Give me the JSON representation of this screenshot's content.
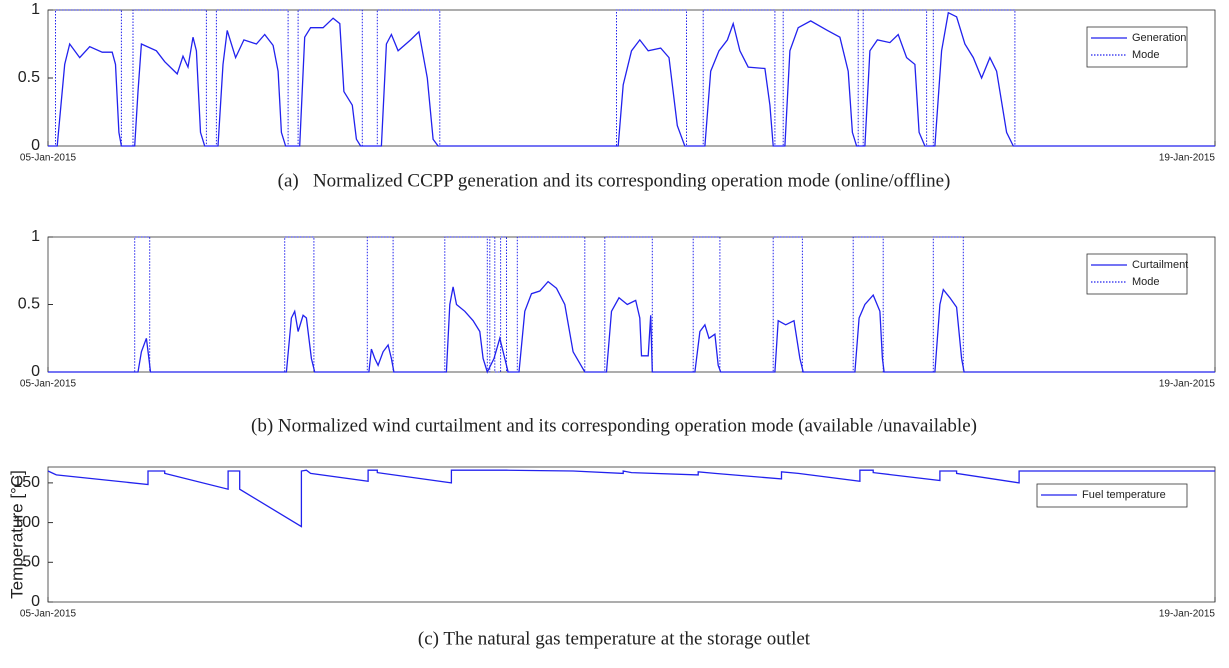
{
  "chart_data": [
    {
      "type": "line",
      "caption": "(a)   Normalized CCPP generation and its corresponding operation mode (online/offline)",
      "xlim": [
        0,
        14
      ],
      "xticks": [
        {
          "value": 0,
          "label": "05-Jan-2015"
        },
        {
          "value": 14,
          "label": "19-Jan-2015"
        }
      ],
      "ylim": [
        0,
        1
      ],
      "yticks": [
        0,
        0.5,
        1
      ],
      "legend": "upper right",
      "series": [
        {
          "name": "Generation",
          "color": "#2222ee",
          "style": "solid",
          "x": [
            0,
            0.11,
            0.2,
            0.26,
            0.38,
            0.5,
            0.65,
            0.77,
            0.81,
            0.85,
            0.88,
            1.04,
            1.08,
            1.12,
            1.3,
            1.4,
            1.55,
            1.62,
            1.68,
            1.74,
            1.78,
            1.83,
            1.88,
            2.04,
            2.1,
            2.15,
            2.25,
            2.35,
            2.5,
            2.6,
            2.7,
            2.76,
            2.8,
            2.85,
            3.02,
            3.08,
            3.15,
            3.3,
            3.42,
            3.5,
            3.55,
            3.65,
            3.7,
            3.75,
            4.0,
            4.06,
            4.12,
            4.2,
            4.35,
            4.45,
            4.55,
            4.62,
            4.68,
            6.84,
            6.9,
            7.0,
            7.1,
            7.2,
            7.35,
            7.45,
            7.55,
            7.64,
            7.88,
            7.95,
            8.05,
            8.15,
            8.22,
            8.3,
            8.4,
            8.6,
            8.66,
            8.7,
            8.84,
            8.9,
            9.0,
            9.15,
            9.35,
            9.5,
            9.6,
            9.65,
            9.7,
            9.8,
            9.86,
            9.95,
            10.1,
            10.2,
            10.3,
            10.4,
            10.45,
            10.52,
            10.64,
            10.72,
            10.8,
            10.9,
            11.0,
            11.1,
            11.2,
            11.3,
            11.38,
            11.5,
            11.58,
            14
          ],
          "values": [
            0,
            0,
            0.6,
            0.75,
            0.65,
            0.73,
            0.69,
            0.69,
            0.6,
            0.1,
            0,
            0,
            0.4,
            0.75,
            0.7,
            0.62,
            0.53,
            0.66,
            0.58,
            0.8,
            0.7,
            0.1,
            0,
            0,
            0.6,
            0.85,
            0.65,
            0.78,
            0.75,
            0.82,
            0.74,
            0.55,
            0.1,
            0,
            0,
            0.8,
            0.87,
            0.87,
            0.94,
            0.9,
            0.4,
            0.3,
            0.05,
            0,
            0,
            0.75,
            0.82,
            0.7,
            0.78,
            0.84,
            0.5,
            0.05,
            0,
            0,
            0.45,
            0.7,
            0.78,
            0.7,
            0.72,
            0.65,
            0.15,
            0,
            0,
            0.55,
            0.7,
            0.78,
            0.9,
            0.7,
            0.58,
            0.57,
            0.3,
            0,
            0,
            0.7,
            0.87,
            0.92,
            0.85,
            0.8,
            0.55,
            0.1,
            0,
            0,
            0.7,
            0.78,
            0.76,
            0.82,
            0.65,
            0.6,
            0.1,
            0,
            0,
            0.7,
            0.98,
            0.95,
            0.75,
            0.65,
            0.5,
            0.65,
            0.55,
            0.1,
            0,
            0
          ]
        },
        {
          "name": "Mode",
          "color": "#2222ee",
          "style": "dotted",
          "x": [
            0,
            0.09,
            0.09,
            0.88,
            0.88,
            1.02,
            1.02,
            1.9,
            1.9,
            2.02,
            2.02,
            2.88,
            2.88,
            3.0,
            3.0,
            3.77,
            3.77,
            3.95,
            3.95,
            4.7,
            4.7,
            6.82,
            6.82,
            7.66,
            7.66,
            7.86,
            7.86,
            8.72,
            8.72,
            8.82,
            8.82,
            9.72,
            9.72,
            9.78,
            9.78,
            10.54,
            10.54,
            10.62,
            10.62,
            11.6,
            11.6,
            14
          ],
          "values": [
            0,
            0,
            1,
            1,
            0,
            0,
            1,
            1,
            0,
            0,
            1,
            1,
            0,
            0,
            1,
            1,
            0,
            0,
            1,
            1,
            0,
            0,
            1,
            1,
            0,
            0,
            1,
            1,
            0,
            0,
            1,
            1,
            0,
            0,
            1,
            1,
            0,
            0,
            1,
            1,
            0,
            0
          ]
        }
      ]
    },
    {
      "type": "line",
      "caption": "(b) Normalized wind curtailment and its corresponding operation mode (available /unavailable)",
      "xlim": [
        0,
        14
      ],
      "xticks": [
        {
          "value": 0,
          "label": "05-Jan-2015"
        },
        {
          "value": 14,
          "label": "19-Jan-2015"
        }
      ],
      "ylim": [
        0,
        1
      ],
      "yticks": [
        0,
        0.5,
        1
      ],
      "legend": "upper right",
      "series": [
        {
          "name": "Curtailment",
          "color": "#2222ee",
          "style": "solid",
          "x": [
            0,
            1.08,
            1.12,
            1.18,
            1.21,
            1.23,
            2.86,
            2.92,
            2.96,
            3.0,
            3.06,
            3.1,
            3.16,
            3.2,
            3.85,
            3.88,
            3.92,
            3.96,
            4.02,
            4.08,
            4.12,
            4.15,
            4.78,
            4.82,
            4.86,
            4.9,
            5.0,
            5.1,
            5.18,
            5.22,
            5.27,
            5.35,
            5.42,
            5.48,
            5.52,
            5.65,
            5.72,
            5.8,
            5.9,
            6.0,
            6.1,
            6.2,
            6.3,
            6.44,
            6.7,
            6.76,
            6.85,
            6.95,
            7.05,
            7.1,
            7.12,
            7.2,
            7.23,
            7.25,
            7.76,
            7.82,
            7.88,
            7.93,
            8.0,
            8.04,
            8.07,
            8.72,
            8.76,
            8.85,
            8.95,
            9.02,
            9.06,
            9.68,
            9.73,
            9.8,
            9.9,
            9.98,
            10.01,
            10.03,
            10.64,
            10.7,
            10.74,
            10.82,
            10.9,
            10.96,
            10.99,
            14
          ],
          "values": [
            0,
            0,
            0.15,
            0.25,
            0.1,
            0,
            0,
            0.4,
            0.45,
            0.3,
            0.42,
            0.4,
            0.1,
            0,
            0,
            0.17,
            0.1,
            0.05,
            0.15,
            0.2,
            0.1,
            0,
            0,
            0.5,
            0.63,
            0.5,
            0.45,
            0.38,
            0.3,
            0.1,
            0,
            0.1,
            0.25,
            0.1,
            0,
            0,
            0.45,
            0.58,
            0.6,
            0.67,
            0.62,
            0.5,
            0.15,
            0,
            0,
            0.45,
            0.55,
            0.5,
            0.53,
            0.4,
            0.12,
            0.12,
            0.42,
            0,
            0,
            0.3,
            0.35,
            0.25,
            0.28,
            0.05,
            0,
            0,
            0.38,
            0.35,
            0.38,
            0.1,
            0,
            0,
            0.4,
            0.5,
            0.57,
            0.45,
            0.1,
            0,
            0,
            0.5,
            0.61,
            0.55,
            0.48,
            0.1,
            0,
            0
          ]
        },
        {
          "name": "Mode",
          "color": "#2222ee",
          "style": "dotted",
          "x": [
            0,
            1.04,
            1.04,
            1.22,
            1.22,
            2.84,
            2.84,
            3.19,
            3.19,
            3.83,
            3.83,
            4.14,
            4.14,
            4.76,
            4.76,
            5.27,
            5.27,
            5.3,
            5.3,
            5.36,
            5.36,
            5.43,
            5.43,
            5.5,
            5.5,
            5.63,
            5.63,
            6.44,
            6.44,
            6.68,
            6.68,
            7.25,
            7.25,
            7.74,
            7.74,
            8.06,
            8.06,
            8.7,
            8.7,
            9.05,
            9.05,
            9.66,
            9.66,
            10.02,
            10.02,
            10.62,
            10.62,
            10.98,
            10.98,
            14
          ],
          "values": [
            0,
            0,
            1,
            1,
            0,
            0,
            1,
            1,
            0,
            0,
            1,
            1,
            0,
            0,
            1,
            1,
            0,
            0,
            1,
            1,
            0,
            0,
            1,
            1,
            0,
            0,
            1,
            1,
            0,
            0,
            1,
            1,
            0,
            0,
            1,
            1,
            0,
            0,
            1,
            1,
            0,
            0,
            1,
            1,
            0,
            0,
            1,
            1,
            0,
            0
          ]
        }
      ]
    },
    {
      "type": "line",
      "caption": "(c) The natural gas temperature at the storage outlet",
      "ylabel": "Temperature [°C]",
      "xlim": [
        0,
        14
      ],
      "xticks": [
        {
          "value": 0,
          "label": "05-Jan-2015"
        },
        {
          "value": 14,
          "label": "19-Jan-2015"
        }
      ],
      "ylim": [
        0,
        170
      ],
      "yticks": [
        0,
        50,
        100,
        150
      ],
      "legend": "upper right",
      "series": [
        {
          "name": "Fuel temperature",
          "color": "#2222ee",
          "style": "solid",
          "x": [
            0,
            0.1,
            1.2,
            1.2,
            1.4,
            1.4,
            2.16,
            2.16,
            2.3,
            2.3,
            3.04,
            3.04,
            3.1,
            3.15,
            3.84,
            3.84,
            3.95,
            3.95,
            4.84,
            4.84,
            5.5,
            6.3,
            6.9,
            6.9,
            7.0,
            7.8,
            7.8,
            8.0,
            8.8,
            8.8,
            9.0,
            9.74,
            9.74,
            9.9,
            9.9,
            10.7,
            10.7,
            10.9,
            10.9,
            11.65,
            11.65,
            14
          ],
          "values": [
            165,
            160,
            148,
            165,
            165,
            162,
            142,
            165,
            165,
            142,
            95,
            165,
            166,
            162,
            152,
            166,
            166,
            163,
            150,
            166,
            166,
            165,
            162,
            165,
            163,
            160,
            164,
            162,
            155,
            164,
            162,
            152,
            166,
            166,
            163,
            153,
            165,
            165,
            162,
            150,
            165,
            165
          ]
        }
      ]
    }
  ]
}
